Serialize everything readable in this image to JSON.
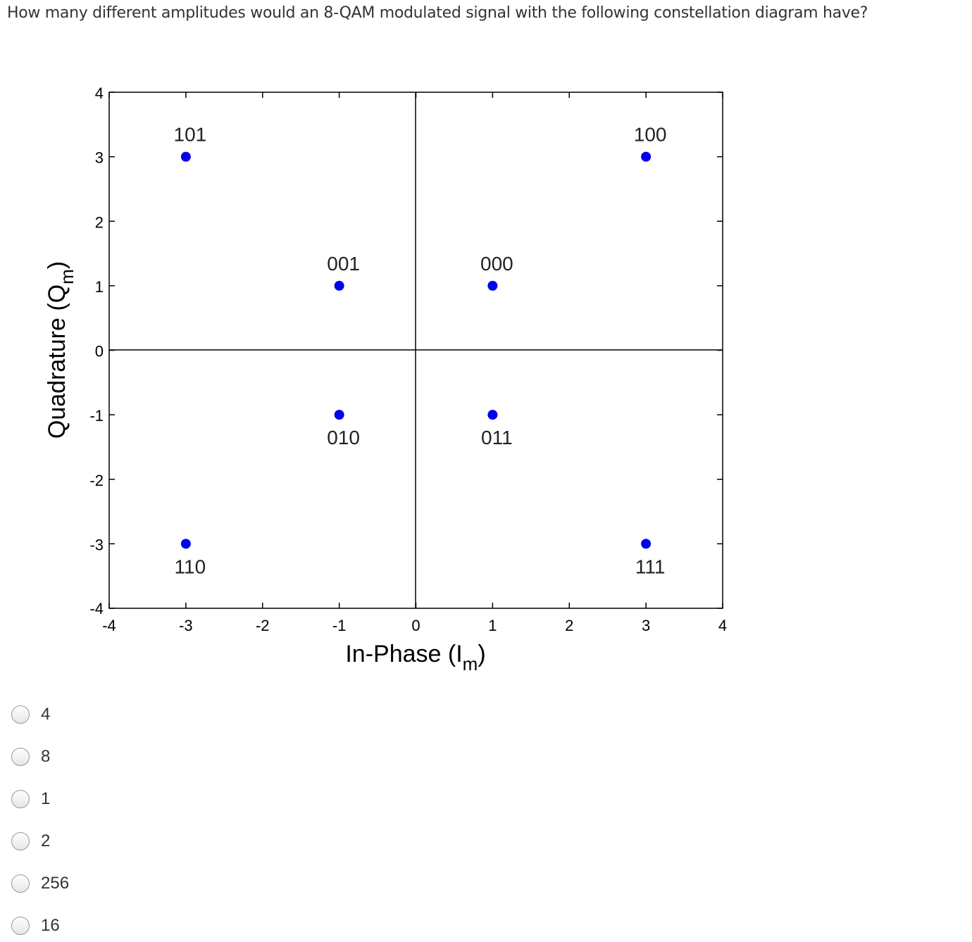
{
  "question": "How many different amplitudes would an 8-QAM modulated signal with the following constellation diagram have?",
  "chart_data": {
    "type": "scatter",
    "xlabel": "In-Phase (I",
    "xlabel_sub": "m",
    "xlabel_close": ")",
    "ylabel": "Quadrature (Q",
    "ylabel_sub": "m",
    "ylabel_close": ")",
    "xlim": [
      -4,
      4
    ],
    "ylim": [
      -4,
      4
    ],
    "xticks": [
      "-4",
      "-3",
      "-2",
      "-1",
      "0",
      "1",
      "2",
      "3",
      "4"
    ],
    "yticks": [
      "-4",
      "-3",
      "-2",
      "-1",
      "0",
      "1",
      "2",
      "3",
      "4"
    ],
    "grid": false,
    "marker_color": "#0000ee",
    "points": [
      {
        "x": -3,
        "y": 3,
        "label": "101",
        "label_pos": "above"
      },
      {
        "x": 3,
        "y": 3,
        "label": "100",
        "label_pos": "above"
      },
      {
        "x": -1,
        "y": 1,
        "label": "001",
        "label_pos": "above"
      },
      {
        "x": 1,
        "y": 1,
        "label": "000",
        "label_pos": "above"
      },
      {
        "x": -1,
        "y": -1,
        "label": "010",
        "label_pos": "below"
      },
      {
        "x": 1,
        "y": -1,
        "label": "011",
        "label_pos": "below"
      },
      {
        "x": -3,
        "y": -3,
        "label": "110",
        "label_pos": "below"
      },
      {
        "x": 3,
        "y": -3,
        "label": "111",
        "label_pos": "below"
      }
    ]
  },
  "options": [
    "4",
    "8",
    "1",
    "2",
    "256",
    "16"
  ]
}
